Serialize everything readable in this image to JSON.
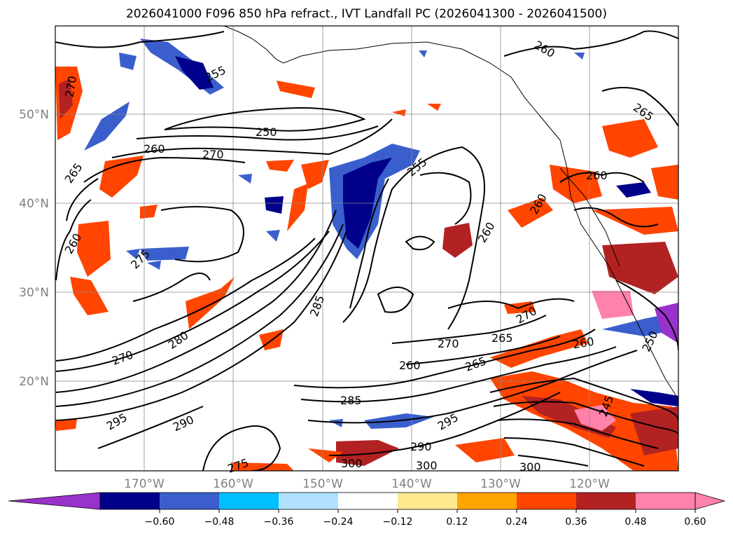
{
  "title": "2026041000 F096 850 hPa refract., IVT Landfall PC (2026041300 - 2026041500)",
  "lat_labels": [
    "50°N",
    "40°N",
    "30°N",
    "20°N"
  ],
  "lon_labels": [
    "170°W",
    "160°W",
    "150°W",
    "140°W",
    "130°W",
    "120°W"
  ],
  "contour_labels": [
    "250",
    "260",
    "270",
    "265",
    "260",
    "255",
    "260",
    "260",
    "270",
    "280",
    "270",
    "285",
    "285",
    "295",
    "290",
    "275",
    "295",
    "300",
    "290",
    "300",
    "300",
    "270",
    "265",
    "260",
    "260",
    "255",
    "265",
    "265",
    "260",
    "250",
    "245",
    "270",
    "260",
    "275"
  ],
  "colorbar": {
    "ticks": [
      "−0.60",
      "−0.48",
      "−0.36",
      "−0.24",
      "−0.12",
      "0.12",
      "0.24",
      "0.36",
      "0.48",
      "0.60"
    ],
    "colors": [
      "#9932cc",
      "#00008b",
      "#3a5fcd",
      "#00bfff",
      "#b0e2ff",
      "#ffffff",
      "#ffe98f",
      "#ffa500",
      "#ff4500",
      "#b22222",
      "#ff82ab",
      "#ff82ab"
    ]
  }
}
